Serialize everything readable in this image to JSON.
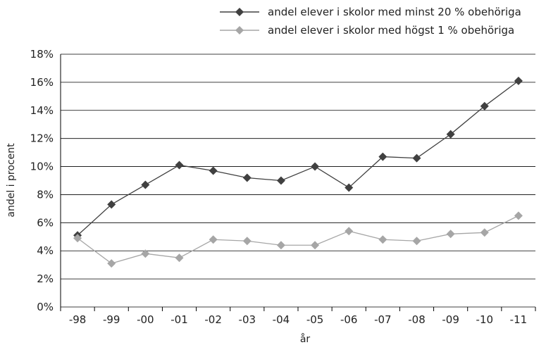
{
  "chart_data": {
    "type": "line",
    "categories": [
      "-98",
      "-99",
      "-00",
      "-01",
      "-02",
      "-03",
      "-04",
      "-05",
      "-06",
      "-07",
      "-08",
      "-09",
      "-10",
      "-11"
    ],
    "series": [
      {
        "name": "andel elever i skolor med minst 20 % obehöriga",
        "color": "#404040",
        "marker": "diamond",
        "values": [
          5.1,
          7.3,
          8.7,
          10.1,
          9.7,
          9.2,
          9.0,
          10.0,
          8.5,
          10.7,
          10.6,
          12.3,
          14.3,
          16.1
        ]
      },
      {
        "name": "andel elever i skolor med högst 1 % obehöriga",
        "color": "#a6a6a6",
        "marker": "diamond",
        "values": [
          4.9,
          3.1,
          3.8,
          3.5,
          4.8,
          4.7,
          4.4,
          4.4,
          5.4,
          4.8,
          4.7,
          5.2,
          5.3,
          6.5
        ]
      }
    ],
    "xlabel": "år",
    "ylabel": "andel i procent",
    "ylim": [
      0,
      18
    ],
    "yticks": [
      "0%",
      "2%",
      "4%",
      "6%",
      "8%",
      "10%",
      "12%",
      "14%",
      "16%",
      "18%"
    ],
    "grid": true,
    "legend_position": "top-right"
  }
}
